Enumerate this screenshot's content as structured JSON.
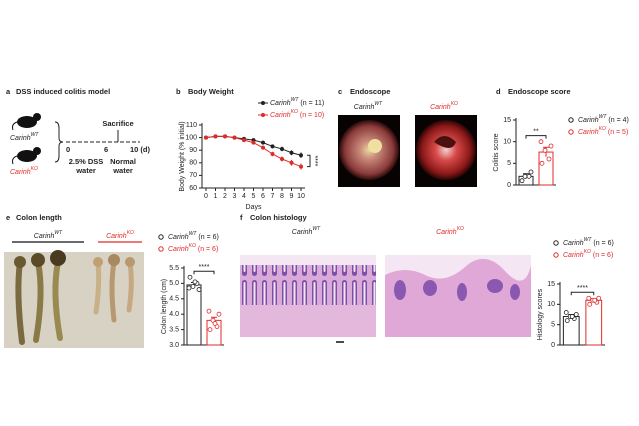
{
  "panels": {
    "a": {
      "letter": "a",
      "title": "DSS induced colitis model",
      "mouse_wt": [
        "Carinh",
        "WT"
      ],
      "mouse_ko": [
        "Carinh",
        "KO"
      ],
      "sacrifice": "Sacrifice",
      "day0": "0",
      "day6": "6",
      "day10": "10 (d)",
      "phase1": [
        "2.5% DSS",
        "water"
      ],
      "phase2": [
        "Normal",
        "water"
      ]
    },
    "b": {
      "letter": "b"
    },
    "c": {
      "letter": "c",
      "title": "Endoscope",
      "wt": [
        "Carinh",
        "WT"
      ],
      "ko": [
        "Carinh",
        "KO"
      ]
    },
    "d": {
      "letter": "d"
    },
    "e": {
      "letter": "e",
      "title": "Colon length",
      "wt": [
        "Carinh",
        "WT"
      ],
      "ko": [
        "Carinh",
        "KO"
      ]
    },
    "f": {
      "letter": "f",
      "title": "Colon histology",
      "wt": [
        "Carinh",
        "WT"
      ],
      "ko": [
        "Carinh",
        "KO"
      ]
    }
  },
  "chart_data": [
    {
      "type": "line",
      "title": "Body Weight",
      "xlabel": "Days",
      "ylabel": "Body Weight (% initial)",
      "x": [
        0,
        1,
        2,
        3,
        4,
        5,
        6,
        7,
        8,
        9,
        10
      ],
      "xlim": [
        0,
        10
      ],
      "xticks": [
        0,
        1,
        2,
        3,
        4,
        5,
        6,
        7,
        8,
        9,
        10
      ],
      "ylim": [
        60,
        110
      ],
      "yticks": [
        60,
        70,
        80,
        90,
        100,
        110
      ],
      "series": [
        {
          "name": "Carinh",
          "sup": "WT",
          "n_label": "(n = 11)",
          "color": "#222222",
          "values": [
            100,
            101,
            101,
            100,
            99,
            98,
            96,
            93,
            91,
            88,
            86
          ],
          "errors": [
            0.5,
            0.6,
            0.6,
            0.8,
            0.9,
            1,
            1.2,
            1.5,
            1.8,
            2,
            2.2
          ]
        },
        {
          "name": "Carinh",
          "sup": "KO",
          "n_label": "(n = 10)",
          "color": "#e02a2a",
          "values": [
            100,
            101,
            101,
            100,
            98,
            96,
            92,
            87,
            83,
            80,
            77
          ],
          "errors": [
            0.5,
            0.6,
            0.7,
            0.8,
            1,
            1.2,
            1.5,
            1.8,
            2,
            2.2,
            2.4
          ]
        }
      ],
      "annotation": "****"
    },
    {
      "type": "bar",
      "title": "Endoscope score",
      "ylabel": "Colitis score",
      "ylim": [
        0,
        15
      ],
      "yticks": [
        0,
        5,
        10,
        15
      ],
      "series": [
        {
          "name": "Carinh",
          "sup": "WT",
          "n_label": "(n = 4)",
          "color": "#222222",
          "values": [
            2
          ],
          "errors": [
            0.6
          ],
          "points": [
            1,
            2,
            2,
            3
          ]
        },
        {
          "name": "Carinh",
          "sup": "KO",
          "n_label": "(n = 5)",
          "color": "#e02a2a",
          "values": [
            7.6
          ],
          "errors": [
            1.1
          ],
          "points": [
            5,
            6,
            8,
            9,
            10
          ]
        }
      ],
      "annotation": "**"
    },
    {
      "type": "bar",
      "ylabel": "Colon length (cm)",
      "ylim": [
        3,
        5.5
      ],
      "yticks": [
        {
          "value": 3,
          "label": "3.0"
        },
        {
          "value": 3.5,
          "label": "3.5"
        },
        {
          "value": 4,
          "label": "4.0"
        },
        {
          "value": 4.5,
          "label": "4.5"
        },
        {
          "value": 5,
          "label": "5.0"
        },
        {
          "value": 5.5,
          "label": "5.5"
        }
      ],
      "series": [
        {
          "name": "Carinh",
          "sup": "WT",
          "n_label": "(n = 6)",
          "color": "#222222",
          "values": [
            4.95
          ],
          "errors": [
            0.08
          ],
          "points": [
            5.2,
            5.0,
            4.9,
            4.8,
            4.85,
            5.05
          ]
        },
        {
          "name": "Carinh",
          "sup": "KO",
          "n_label": "(n = 6)",
          "color": "#e02a2a",
          "values": [
            3.8
          ],
          "errors": [
            0.1
          ],
          "points": [
            3.5,
            3.6,
            3.8,
            4.0,
            4.1,
            3.7
          ]
        }
      ],
      "annotation": "****"
    },
    {
      "type": "bar",
      "ylabel": "Histology scores",
      "ylim": [
        0,
        15
      ],
      "yticks": [
        0,
        5,
        10,
        15
      ],
      "series": [
        {
          "name": "Carinh",
          "sup": "WT",
          "n_label": "(n = 6)",
          "color": "#222222",
          "values": [
            7
          ],
          "errors": [
            0.5
          ],
          "points": [
            6,
            6.5,
            7,
            7.5,
            8,
            7
          ]
        },
        {
          "name": "Carinh",
          "sup": "KO",
          "n_label": "(n = 6)",
          "color": "#e02a2a",
          "values": [
            11
          ],
          "errors": [
            0.4
          ],
          "points": [
            10,
            10.5,
            11,
            11.5,
            11.5,
            11
          ]
        }
      ],
      "annotation": "****"
    }
  ]
}
